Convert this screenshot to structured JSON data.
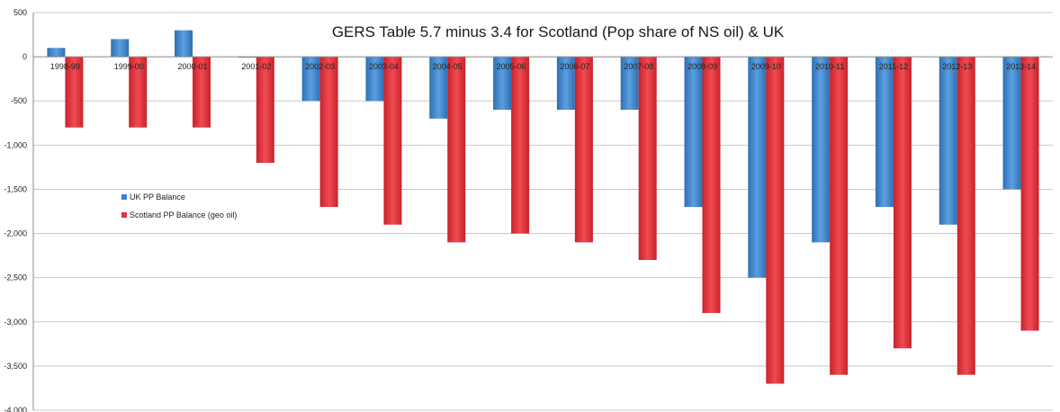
{
  "chart_data": {
    "type": "bar",
    "title": "GERS Table 5.7 minus 3.4 for Scotland (Pop share of NS oil) & UK",
    "xlabel": "",
    "ylabel": "",
    "categories": [
      "1998-99",
      "1999-00",
      "2000-01",
      "2001-02",
      "2002-03",
      "2003-04",
      "2004-05",
      "2005-06",
      "2006-07",
      "2007-08",
      "2008-09",
      "2009-10",
      "2010-11",
      "2011-12",
      "2012-13",
      "2013-14"
    ],
    "series": [
      {
        "name": "UK PP Balance",
        "color": "#3b82c8",
        "values": [
          100,
          200,
          300,
          0,
          -500,
          -500,
          -700,
          -600,
          -600,
          -600,
          -1700,
          -2500,
          -2100,
          -1700,
          -1900,
          -1500
        ]
      },
      {
        "name": "Scotland PP Balance (geo oil)",
        "color": "#e0313a",
        "values": [
          -800,
          -800,
          -800,
          -1200,
          -1700,
          -1900,
          -2100,
          -2000,
          -2100,
          -2300,
          -2900,
          -3700,
          -3600,
          -3300,
          -3600,
          -3100
        ]
      }
    ],
    "ylim": [
      -4000,
      500
    ],
    "yticks": [
      500,
      0,
      -500,
      -1000,
      -1500,
      -2000,
      -2500,
      -3000,
      -3500,
      -4000
    ],
    "ytick_labels": [
      "500",
      "0",
      "-500",
      "-1,000",
      "-1,500",
      "-2,000",
      "-2,500",
      "-3,000",
      "-3,500",
      "-4,000"
    ],
    "grid": true,
    "legend_position": "left-middle"
  }
}
